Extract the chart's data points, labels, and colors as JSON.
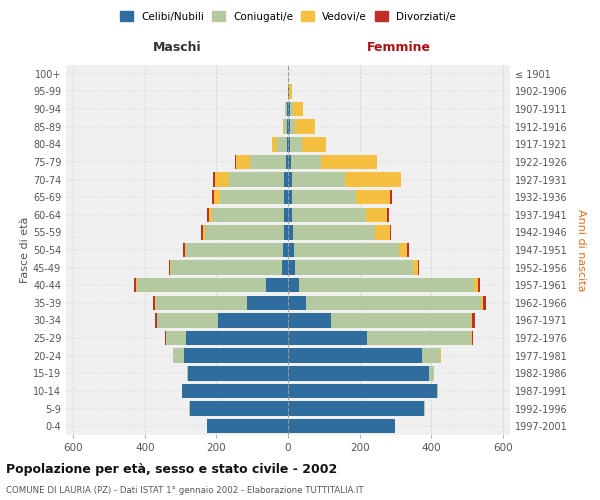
{
  "age_groups": [
    "0-4",
    "5-9",
    "10-14",
    "15-19",
    "20-24",
    "25-29",
    "30-34",
    "35-39",
    "40-44",
    "45-49",
    "50-54",
    "55-59",
    "60-64",
    "65-69",
    "70-74",
    "75-79",
    "80-84",
    "85-89",
    "90-94",
    "95-99",
    "100+"
  ],
  "birth_years": [
    "1997-2001",
    "1992-1996",
    "1987-1991",
    "1982-1986",
    "1977-1981",
    "1972-1976",
    "1967-1971",
    "1962-1966",
    "1957-1961",
    "1952-1956",
    "1947-1951",
    "1942-1946",
    "1937-1941",
    "1932-1936",
    "1927-1931",
    "1922-1926",
    "1917-1921",
    "1912-1916",
    "1907-1911",
    "1902-1906",
    "≤ 1901"
  ],
  "males": {
    "celibi": [
      225,
      275,
      295,
      278,
      290,
      285,
      195,
      115,
      62,
      18,
      14,
      12,
      12,
      10,
      10,
      5,
      3,
      2,
      2,
      0,
      0
    ],
    "coniugati": [
      0,
      2,
      2,
      4,
      30,
      55,
      170,
      255,
      360,
      310,
      270,
      220,
      200,
      180,
      155,
      100,
      28,
      8,
      5,
      0,
      0
    ],
    "vedovi": [
      0,
      0,
      0,
      0,
      0,
      2,
      2,
      2,
      2,
      2,
      5,
      5,
      8,
      18,
      40,
      40,
      15,
      5,
      0,
      0,
      0
    ],
    "divorziati": [
      0,
      0,
      0,
      0,
      0,
      2,
      5,
      5,
      5,
      2,
      5,
      5,
      5,
      5,
      5,
      2,
      0,
      0,
      0,
      0,
      0
    ]
  },
  "females": {
    "nubili": [
      300,
      380,
      415,
      395,
      375,
      220,
      120,
      50,
      30,
      20,
      16,
      14,
      12,
      10,
      10,
      8,
      5,
      5,
      5,
      2,
      0
    ],
    "coniugate": [
      0,
      2,
      5,
      12,
      50,
      290,
      390,
      490,
      490,
      330,
      295,
      230,
      205,
      180,
      150,
      85,
      35,
      15,
      8,
      2,
      0
    ],
    "vedove": [
      0,
      0,
      0,
      0,
      2,
      5,
      5,
      5,
      10,
      12,
      20,
      40,
      60,
      95,
      155,
      155,
      65,
      55,
      30,
      8,
      0
    ],
    "divorziate": [
      0,
      0,
      0,
      0,
      0,
      2,
      8,
      8,
      5,
      5,
      8,
      5,
      5,
      5,
      0,
      0,
      0,
      0,
      0,
      0,
      0
    ]
  },
  "colors": {
    "celibi": "#2e6d9e",
    "coniugati": "#b5c9a0",
    "vedovi": "#f5c040",
    "divorziati": "#c0302a"
  },
  "xlim": 620,
  "title": "Popolazione per età, sesso e stato civile - 2002",
  "subtitle": "COMUNE DI LAURIA (PZ) - Dati ISTAT 1° gennaio 2002 - Elaborazione TUTTITALIA.IT",
  "xlabel_left": "Maschi",
  "xlabel_right": "Femmine",
  "ylabel_left": "Fasce di età",
  "ylabel_right": "Anni di nascita",
  "bg_color": "#ffffff",
  "plot_bg_color": "#f0f0f0",
  "grid_color": "#cccccc"
}
